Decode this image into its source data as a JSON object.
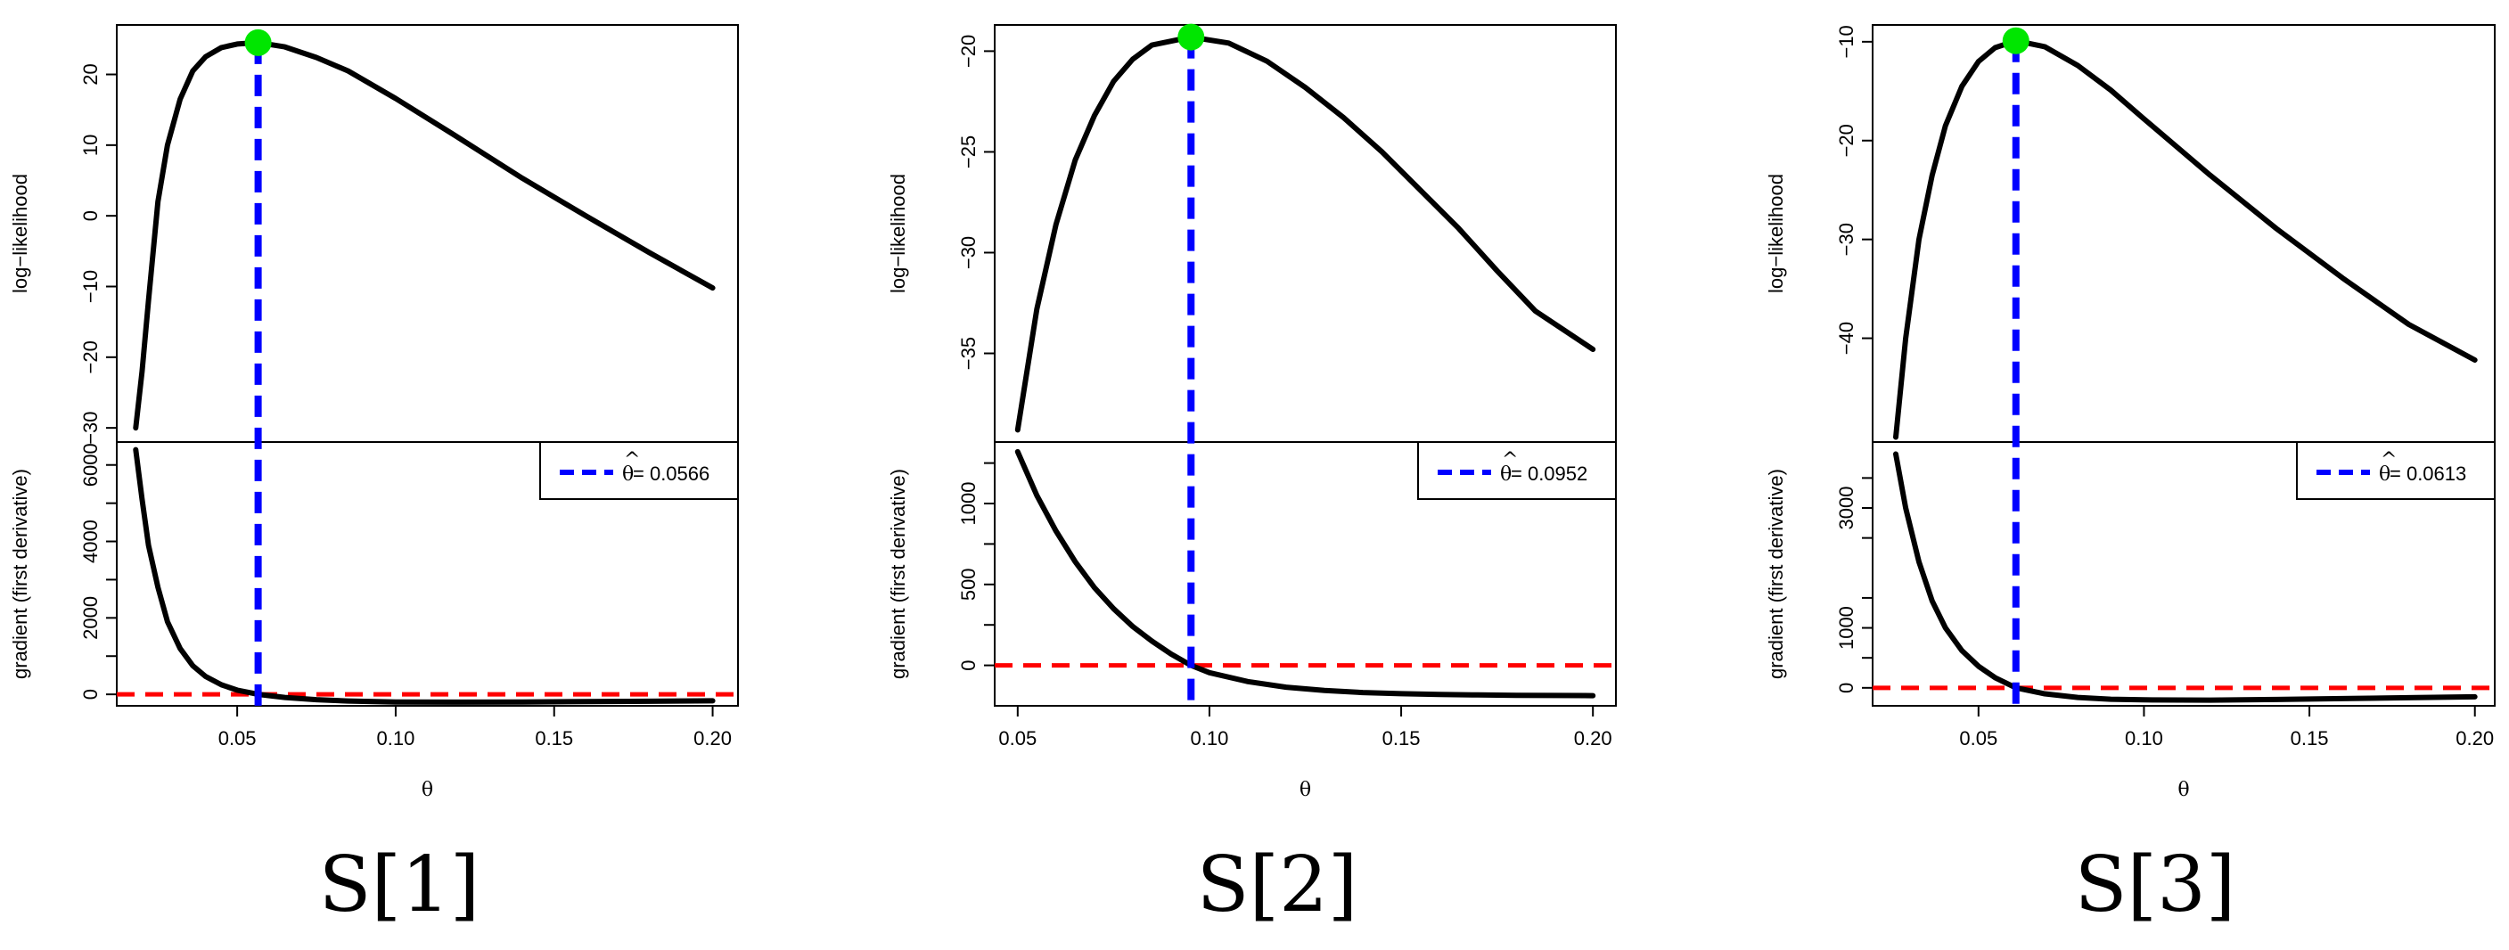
{
  "chart_data": [
    {
      "type": "line",
      "caption": "S[1]",
      "xlabel": "θ",
      "xlim": [
        0.012,
        0.208
      ],
      "xticks": [
        0.05,
        0.1,
        0.15,
        0.2
      ],
      "xtick_labels": [
        "0.05",
        "0.10",
        "0.15",
        "0.20"
      ],
      "top": {
        "ylabel": "log−likelihood",
        "ylim": [
          -32,
          27
        ],
        "yticks": [
          -30,
          -20,
          -10,
          0,
          10,
          20
        ],
        "ytick_labels": [
          "−30",
          "−20",
          "−10",
          "0",
          "10",
          "20"
        ],
        "series": {
          "x": [
            0.018,
            0.02,
            0.022,
            0.025,
            0.028,
            0.032,
            0.036,
            0.04,
            0.045,
            0.05,
            0.0566,
            0.065,
            0.075,
            0.085,
            0.1,
            0.12,
            0.14,
            0.16,
            0.18,
            0.2
          ],
          "y": [
            -30,
            -22,
            -12,
            2,
            10,
            16.5,
            20.5,
            22.5,
            23.8,
            24.3,
            24.5,
            23.9,
            22.4,
            20.5,
            16.6,
            11,
            5.3,
            0,
            -5.2,
            -10.2
          ]
        },
        "max_point": {
          "x": 0.0566,
          "y": 24.5
        }
      },
      "bottom": {
        "ylabel": "gradient (first derivative)",
        "ylim": [
          -300,
          6600
        ],
        "yticks": [
          0,
          2000,
          4000,
          6000
        ],
        "ytick_labels": [
          "0",
          "2000",
          "4000",
          "6000"
        ],
        "series": {
          "x": [
            0.018,
            0.02,
            0.022,
            0.025,
            0.028,
            0.032,
            0.036,
            0.04,
            0.045,
            0.05,
            0.0566,
            0.065,
            0.075,
            0.085,
            0.1,
            0.12,
            0.14,
            0.16,
            0.18,
            0.2
          ],
          "y": [
            6400,
            5100,
            3900,
            2800,
            1900,
            1200,
            750,
            470,
            250,
            110,
            0,
            -80,
            -140,
            -175,
            -200,
            -205,
            -200,
            -190,
            -180,
            -170
          ]
        },
        "zero_line": 0
      },
      "vline_x": 0.0566,
      "legend": {
        "hat": "^",
        "var": "θ",
        "value_text": " = 0.0566"
      }
    },
    {
      "type": "line",
      "caption": "S[2]",
      "xlabel": "θ",
      "xlim": [
        0.044,
        0.206
      ],
      "xticks": [
        0.05,
        0.1,
        0.15,
        0.2
      ],
      "xtick_labels": [
        "0.05",
        "0.10",
        "0.15",
        "0.20"
      ],
      "top": {
        "ylabel": "log−likelihood",
        "ylim": [
          -39.4,
          -18.7
        ],
        "yticks": [
          -35,
          -30,
          -25,
          -20
        ],
        "ytick_labels": [
          "−35",
          "−30",
          "−25",
          "−20"
        ],
        "series": {
          "x": [
            0.05,
            0.055,
            0.06,
            0.065,
            0.07,
            0.075,
            0.08,
            0.085,
            0.0952,
            0.105,
            0.115,
            0.125,
            0.135,
            0.145,
            0.155,
            0.165,
            0.175,
            0.185,
            0.2
          ],
          "y": [
            -38.8,
            -32.8,
            -28.6,
            -25.4,
            -23.2,
            -21.5,
            -20.4,
            -19.7,
            -19.3,
            -19.6,
            -20.5,
            -21.8,
            -23.3,
            -25.0,
            -26.9,
            -28.8,
            -30.9,
            -32.9,
            -34.8
          ]
        },
        "max_point": {
          "x": 0.0952,
          "y": -19.3
        }
      },
      "bottom": {
        "ylabel": "gradient (first derivative)",
        "ylim": [
          -250,
          1380
        ],
        "yticks": [
          0,
          500,
          1000
        ],
        "ytick_labels": [
          "0",
          "500",
          "1000"
        ],
        "series": {
          "x": [
            0.05,
            0.055,
            0.06,
            0.065,
            0.07,
            0.075,
            0.08,
            0.085,
            0.09,
            0.0952,
            0.1,
            0.11,
            0.12,
            0.13,
            0.14,
            0.15,
            0.16,
            0.17,
            0.18,
            0.19,
            0.2
          ],
          "y": [
            1320,
            1050,
            830,
            640,
            480,
            350,
            240,
            150,
            70,
            0,
            -45,
            -100,
            -135,
            -155,
            -168,
            -175,
            -180,
            -183,
            -185,
            -186,
            -187
          ]
        },
        "zero_line": 0
      },
      "vline_x": 0.0952,
      "legend": {
        "hat": "^",
        "var": "θ",
        "value_text": " = 0.0952"
      }
    },
    {
      "type": "line",
      "caption": "S[3]",
      "xlabel": "θ",
      "xlim": [
        0.018,
        0.206
      ],
      "xticks": [
        0.05,
        0.1,
        0.15,
        0.2
      ],
      "xtick_labels": [
        "0.05",
        "0.10",
        "0.15",
        "0.20"
      ],
      "top": {
        "ylabel": "log−likelihood",
        "ylim": [
          -50.5,
          -8.3
        ],
        "yticks": [
          -40,
          -30,
          -20,
          -10
        ],
        "ytick_labels": [
          "−40",
          "−30",
          "−20",
          "−10"
        ],
        "series": {
          "x": [
            0.025,
            0.028,
            0.032,
            0.036,
            0.04,
            0.045,
            0.05,
            0.055,
            0.0613,
            0.07,
            0.08,
            0.09,
            0.1,
            0.12,
            0.14,
            0.16,
            0.18,
            0.2
          ],
          "y": [
            -50,
            -40,
            -30,
            -23.5,
            -18.5,
            -14.5,
            -12,
            -10.6,
            -9.9,
            -10.5,
            -12.4,
            -14.9,
            -17.8,
            -23.5,
            -28.9,
            -33.9,
            -38.6,
            -42.2
          ]
        },
        "max_point": {
          "x": 0.0613,
          "y": -9.9
        }
      },
      "bottom": {
        "ylabel": "gradient (first derivative)",
        "ylim": [
          -300,
          4100
        ],
        "yticks": [
          0,
          1000,
          3000
        ],
        "ytick_labels": [
          "0",
          "1000",
          "3000"
        ],
        "series": {
          "x": [
            0.025,
            0.028,
            0.032,
            0.036,
            0.04,
            0.045,
            0.05,
            0.055,
            0.0613,
            0.07,
            0.08,
            0.09,
            0.1,
            0.12,
            0.14,
            0.16,
            0.18,
            0.2
          ],
          "y": [
            3900,
            3000,
            2100,
            1450,
            1000,
            620,
            360,
            170,
            0,
            -100,
            -160,
            -190,
            -200,
            -205,
            -195,
            -180,
            -165,
            -150
          ]
        },
        "zero_line": 0
      },
      "vline_x": 0.0613,
      "legend": {
        "hat": "^",
        "var": "θ",
        "value_text": " = 0.0613"
      }
    }
  ],
  "colors": {
    "curve": "#000000",
    "vline": "#0000ff",
    "zero_line": "#ff0000",
    "max_point": "#00e600"
  }
}
